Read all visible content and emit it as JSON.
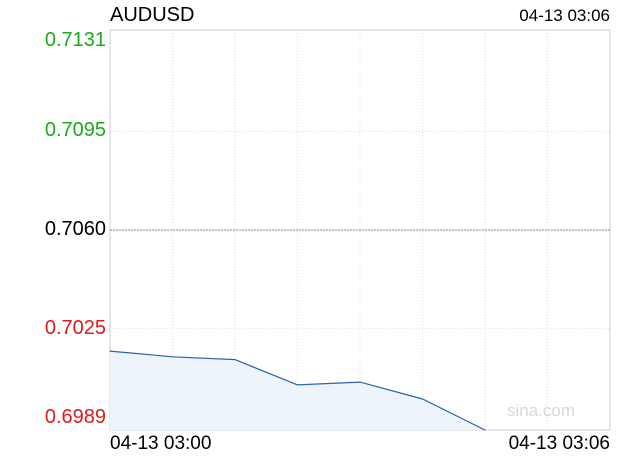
{
  "header": {
    "symbol": "AUDUSD",
    "timestamp": "04-13 03:06"
  },
  "watermark": "sina.com",
  "colors": {
    "up": "#1aaa1a",
    "mid": "#000000",
    "down": "#e01a1a",
    "line": "#2f62ad",
    "fill": "#eef4fb",
    "grid": "#dddddd"
  },
  "chart_data": {
    "type": "area",
    "title": "AUDUSD",
    "x_start_label": "04-13 03:00",
    "x_end_label": "04-13 03:06",
    "ylim": [
      0.6989,
      0.7131
    ],
    "y_ticks": [
      {
        "label": "0.7131",
        "value": 0.7131,
        "state": "up"
      },
      {
        "label": "0.7095",
        "value": 0.7095,
        "state": "up"
      },
      {
        "label": "0.7060",
        "value": 0.706,
        "state": "mid"
      },
      {
        "label": "0.7025",
        "value": 0.7025,
        "state": "down"
      },
      {
        "label": "0.6989",
        "value": 0.6989,
        "state": "down"
      }
    ],
    "reference_value": 0.706,
    "x_slots": 8,
    "series": [
      {
        "values": [
          0.7017,
          0.7015,
          0.7014,
          0.7005,
          0.7006,
          0.7,
          0.6989
        ]
      }
    ],
    "grid": true
  }
}
